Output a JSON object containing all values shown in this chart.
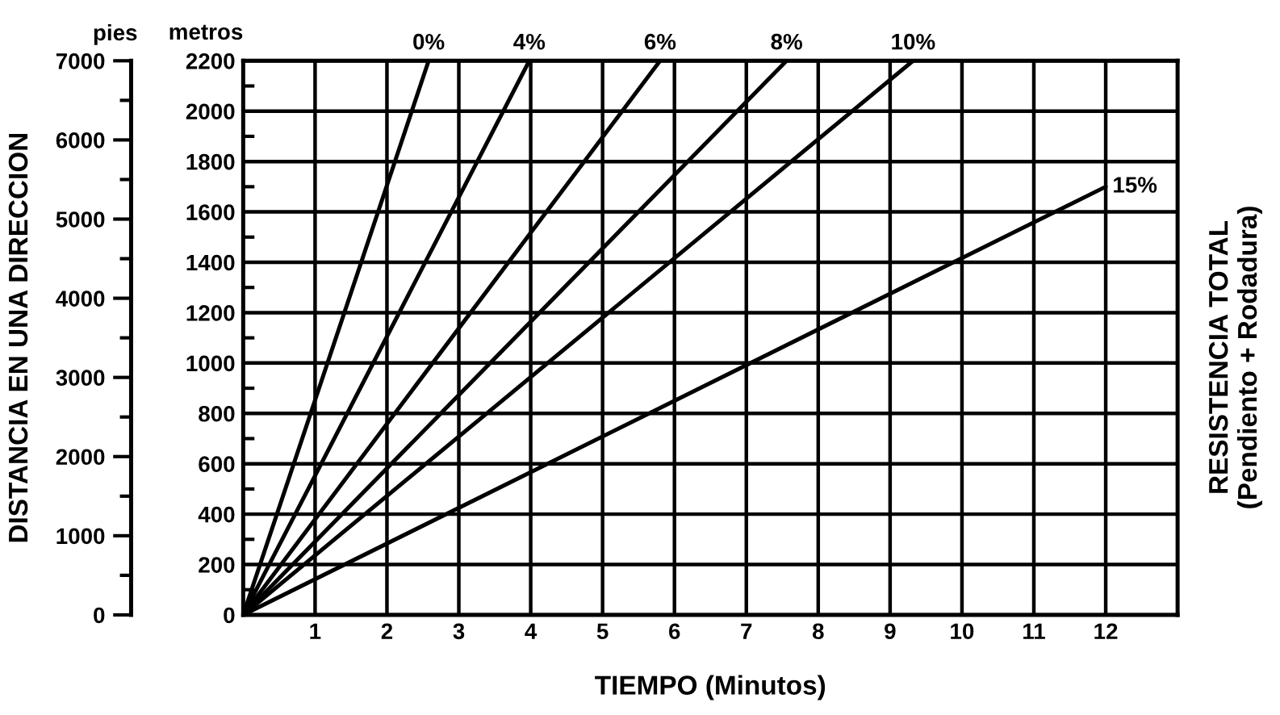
{
  "chart_data": {
    "type": "line",
    "xlabel": "TIEMPO (Minutos)",
    "ylabel": "metros",
    "y2label": "DISTANCIA EN UNA DIRECCION",
    "annotations": [
      "pies",
      "RESISTENCIA TOTAL\n(Pendiento + Rodadura)"
    ],
    "series": [
      {
        "name": "0%",
        "color": "#000000",
        "x": [
          0,
          2.58
        ],
        "values": [
          0,
          2200
        ]
      },
      {
        "name": "4%",
        "color": "#000000",
        "x": [
          0,
          3.98
        ],
        "values": [
          0,
          2200
        ]
      },
      {
        "name": "6%",
        "color": "#000000",
        "x": [
          0,
          5.8
        ],
        "values": [
          0,
          2200
        ]
      },
      {
        "name": "8%",
        "color": "#000000",
        "x": [
          0,
          7.56
        ],
        "values": [
          0,
          2200
        ]
      },
      {
        "name": "10%",
        "color": "#000000",
        "x": [
          0,
          9.32
        ],
        "values": [
          0,
          2200
        ]
      },
      {
        "name": "15%",
        "color": "#000000",
        "x": [
          0,
          12.0
        ],
        "values": [
          0,
          1700
        ]
      }
    ],
    "xlim": [
      0,
      13
    ],
    "xticks": [
      1,
      2,
      3,
      4,
      5,
      6,
      7,
      8,
      9,
      10,
      11,
      12
    ],
    "ylim": [
      0,
      2200
    ],
    "yticks": [
      0,
      200,
      400,
      600,
      800,
      1000,
      1200,
      1400,
      1600,
      1800,
      2000,
      2200
    ],
    "y2lim": [
      0,
      7000
    ],
    "y2ticks": [
      0,
      1000,
      2000,
      3000,
      4000,
      5000,
      6000,
      7000
    ],
    "grid": true,
    "legend": false,
    "line_style": "solid",
    "marker": "none"
  }
}
